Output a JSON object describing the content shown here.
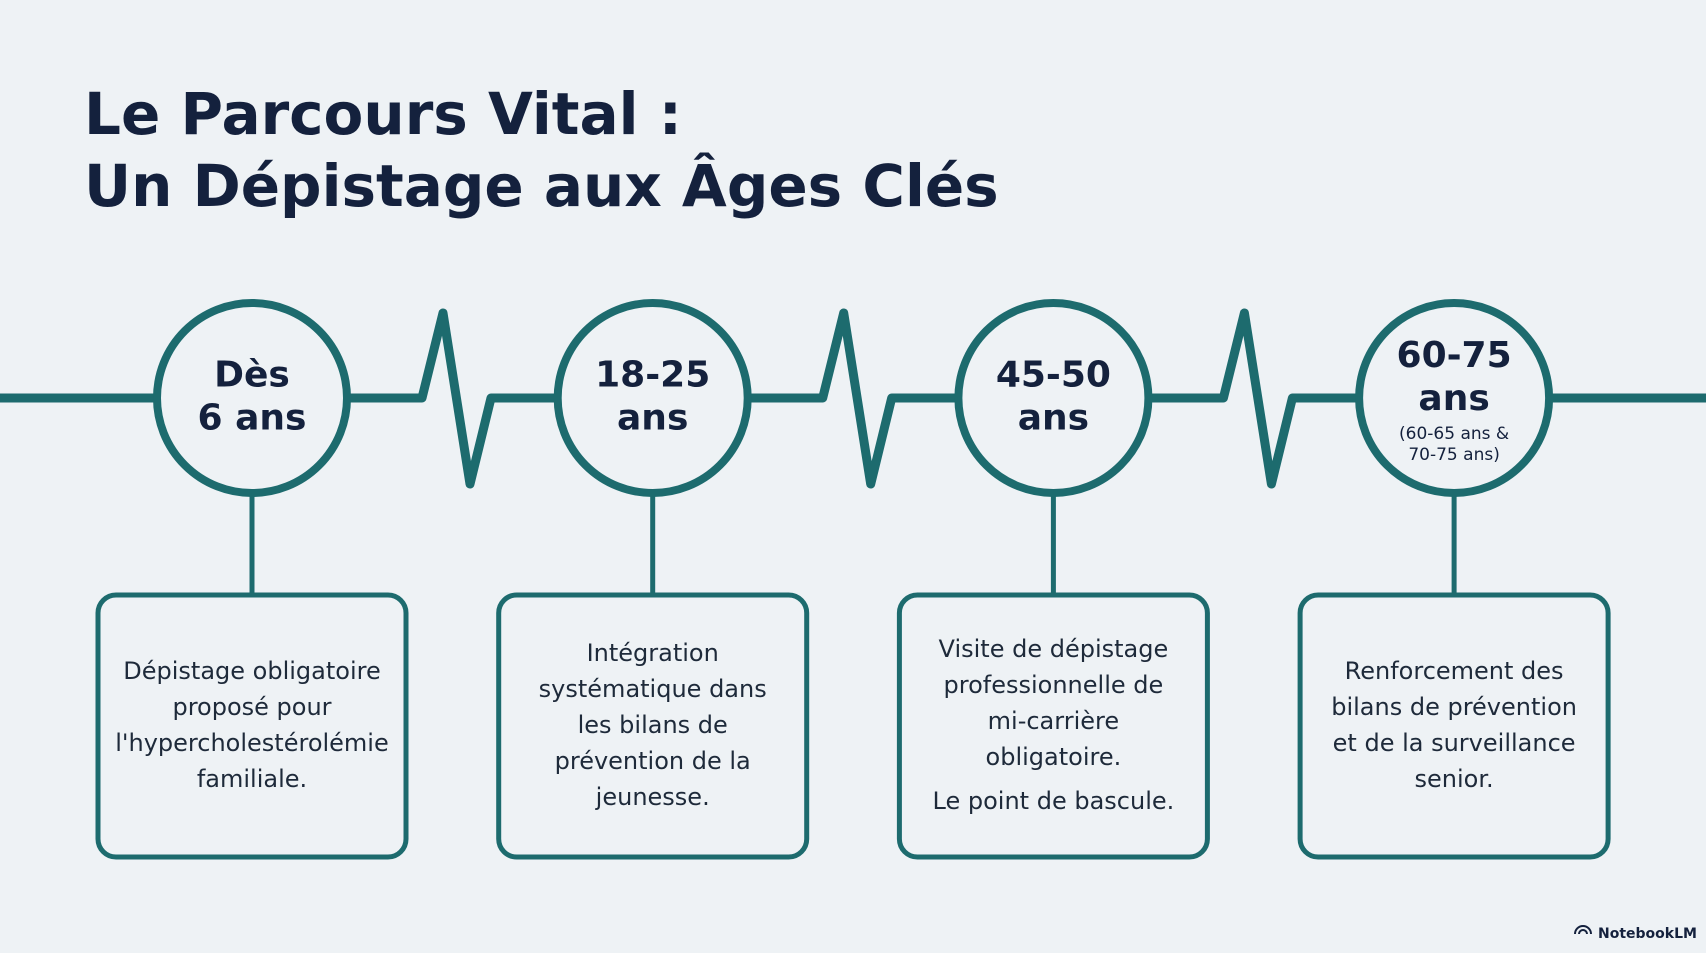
{
  "header": {
    "title": [
      "Le Parcours Vital :",
      "Un Dépistage aux Âges Clés"
    ]
  },
  "stages": [
    {
      "label": [
        "Dès",
        "6 ans"
      ],
      "description": [
        [
          "Dépistage obligatoire",
          "proposé pour",
          "l'hypercholestérolémie",
          "familiale."
        ]
      ]
    },
    {
      "label": [
        "18-25",
        "ans"
      ],
      "description": [
        [
          "Intégration",
          "systématique dans",
          "les bilans de",
          "prévention de la",
          "jeunesse."
        ]
      ]
    },
    {
      "label": [
        "45-50",
        "ans"
      ],
      "description": [
        [
          "Visite de dépistage",
          "professionnelle de",
          "mi-carrière",
          "obligatoire."
        ],
        [
          "Le point de bascule."
        ]
      ]
    },
    {
      "label": [
        "60-75",
        "ans"
      ],
      "sublabel": [
        "(60-65 ans &",
        "70-75 ans)"
      ],
      "description": [
        [
          "Renforcement des",
          "bilans de prévention",
          "et de la surveillance",
          "senior."
        ]
      ]
    }
  ],
  "footer": {
    "brand": "NotebookLM"
  }
}
